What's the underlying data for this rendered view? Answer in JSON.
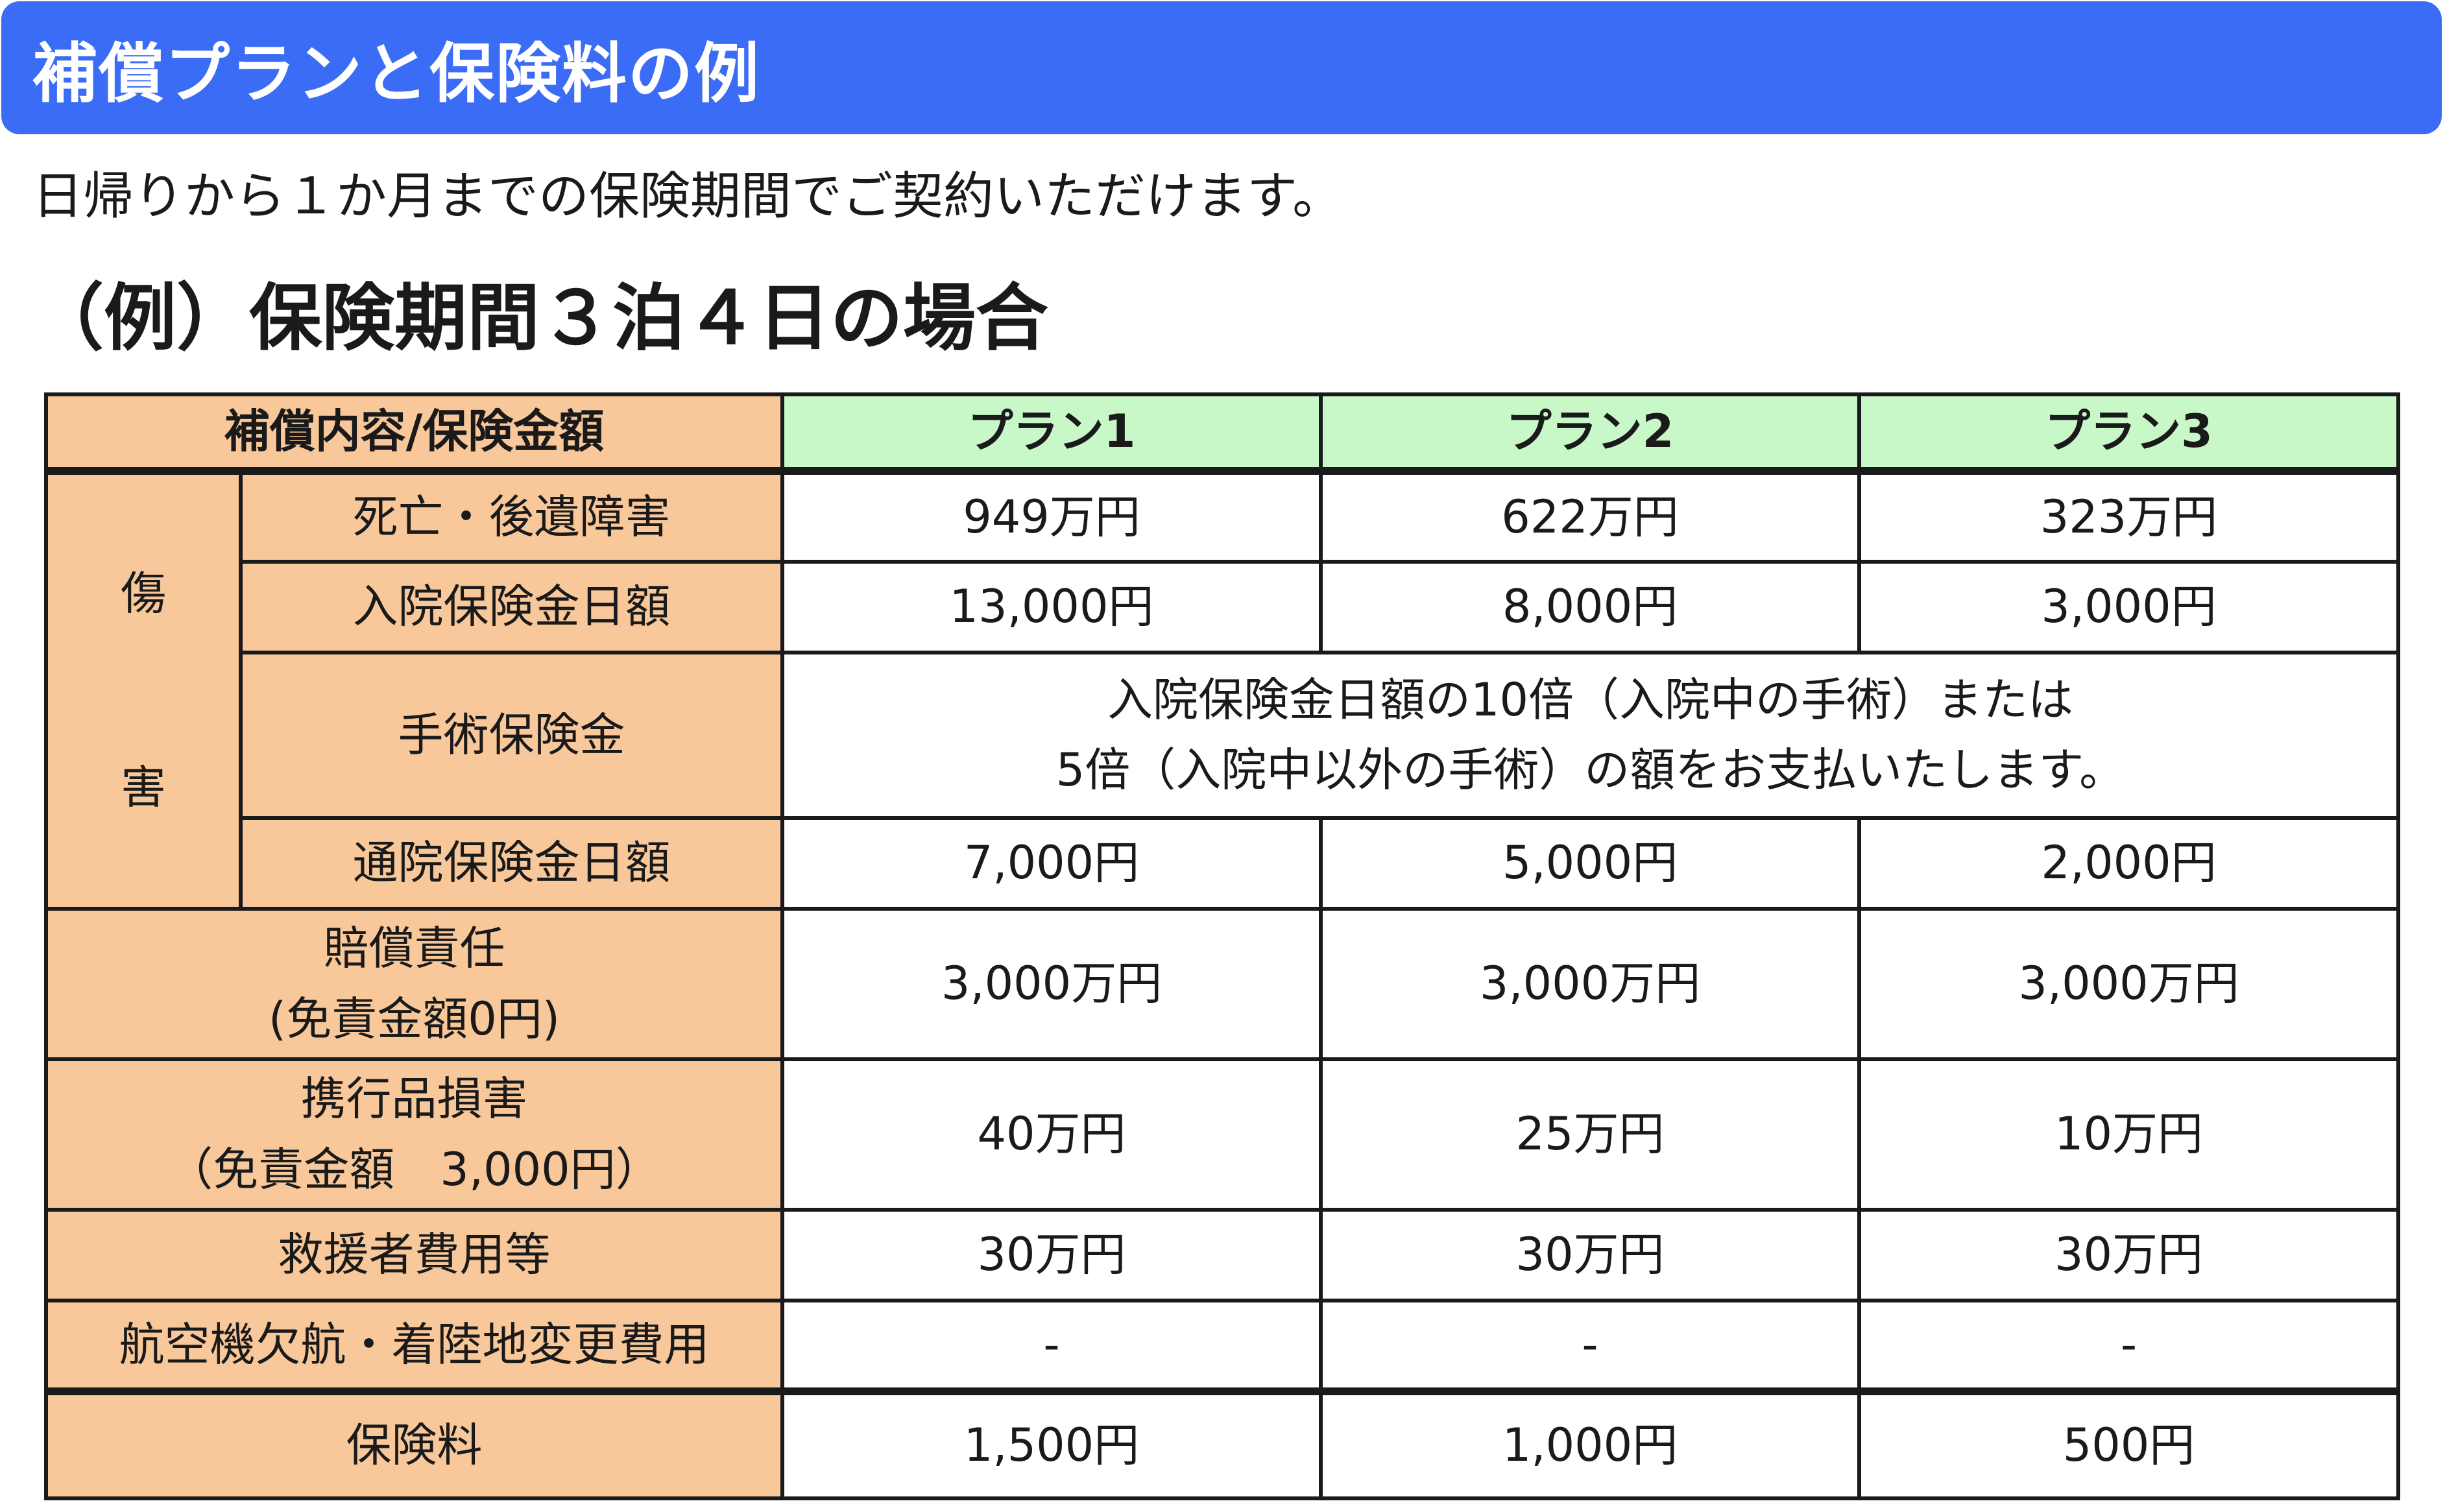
{
  "banner": {
    "title": "補償プランと保険料の例"
  },
  "intro": "日帰りから１か月までの保険期間でご契約いただけます。",
  "example_heading": "（例）保険期間３泊４日の場合",
  "table": {
    "header_label": "補償内容/保険金額",
    "plans": [
      "プラン1",
      "プラン2",
      "プラン3"
    ],
    "injury_group": {
      "char_1": "傷",
      "char_2": "害"
    },
    "rows": {
      "death": {
        "label": "死亡・後遺障害",
        "values": [
          "949万円",
          "622万円",
          "323万円"
        ]
      },
      "hospital": {
        "label": "入院保険金日額",
        "values": [
          "13,000円",
          "8,000円",
          "3,000円"
        ]
      },
      "surgery": {
        "label": "手術保険金",
        "note_line1": "入院保険金日額の10倍（入院中の手術）または",
        "note_line2": "5倍（入院中以外の手術）の額をお支払いたします。"
      },
      "outpatient": {
        "label": "通院保険金日額",
        "values": [
          "7,000円",
          "5,000円",
          "2,000円"
        ]
      },
      "liability": {
        "label_line1": "賠償責任",
        "label_line2": "(免責金額0円)",
        "values": [
          "3,000万円",
          "3,000万円",
          "3,000万円"
        ]
      },
      "belongings": {
        "label_line1": "携行品損害",
        "label_line2": "（免責金額　3,000円）",
        "values": [
          "40万円",
          "25万円",
          "10万円"
        ]
      },
      "rescue": {
        "label": "救援者費用等",
        "values": [
          "30万円",
          "30万円",
          "30万円"
        ]
      },
      "flight": {
        "label": "航空機欠航・着陸地変更費用",
        "values": [
          "-",
          "-",
          "-"
        ]
      },
      "premium": {
        "label": "保険料",
        "values": [
          "1,500円",
          "1,000円",
          "500円"
        ]
      }
    }
  }
}
